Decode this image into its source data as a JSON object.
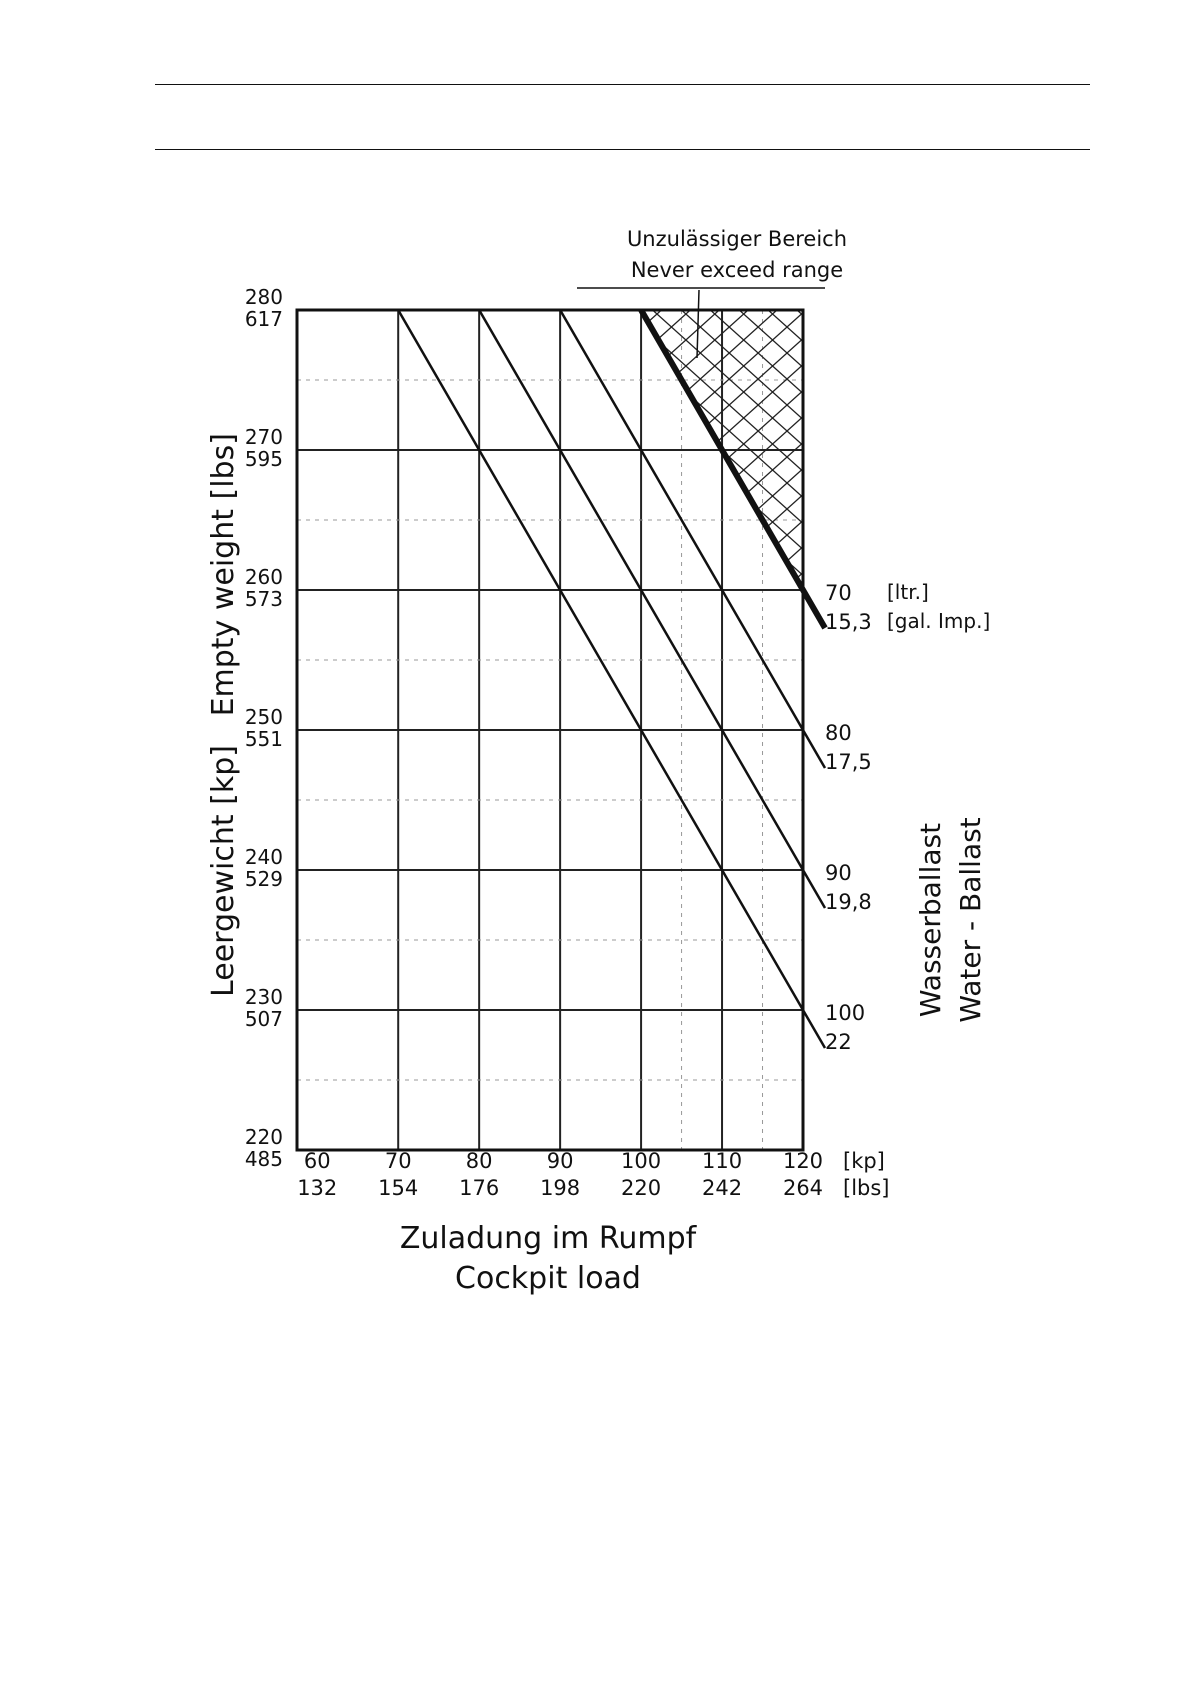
{
  "chart_data": {
    "type": "line",
    "title": "",
    "xlabel": "Zuladung im Rumpf",
    "xlabel2": "Cockpit load",
    "ylabel": "Leergewicht [kp]   Empty weight [lbs]",
    "xlim": [
      57.5,
      120
    ],
    "ylim": [
      220,
      280
    ],
    "x_ticks": [
      {
        "kp": "60",
        "lbs": "132"
      },
      {
        "kp": "70",
        "lbs": "154"
      },
      {
        "kp": "80",
        "lbs": "176"
      },
      {
        "kp": "90",
        "lbs": "198"
      },
      {
        "kp": "100",
        "lbs": "220"
      },
      {
        "kp": "110",
        "lbs": "242"
      },
      {
        "kp": "120",
        "lbs": "264"
      }
    ],
    "x_units": {
      "kp": "[kp]",
      "lbs": "[lbs]"
    },
    "y_ticks": [
      {
        "kp": "220",
        "lbs": "485"
      },
      {
        "kp": "230",
        "lbs": "507"
      },
      {
        "kp": "240",
        "lbs": "529"
      },
      {
        "kp": "250",
        "lbs": "551"
      },
      {
        "kp": "260",
        "lbs": "573"
      },
      {
        "kp": "270",
        "lbs": "595"
      },
      {
        "kp": "280",
        "lbs": "617"
      }
    ],
    "grid": true,
    "series": [
      {
        "name": "70",
        "name2": "15,3",
        "unit": "[ltr.]",
        "unit2": "[gal. Imp.]",
        "x": [
          100,
          120
        ],
        "y": [
          280,
          260
        ]
      },
      {
        "name": "80",
        "name2": "17,5",
        "x": [
          90,
          120
        ],
        "y": [
          280,
          250
        ]
      },
      {
        "name": "90",
        "name2": "19,8",
        "x": [
          80,
          120
        ],
        "y": [
          280,
          240
        ]
      },
      {
        "name": "100",
        "name2": "22",
        "x": [
          70,
          120
        ],
        "y": [
          280,
          230
        ]
      }
    ],
    "series_title": "Wasserballast",
    "series_title2": "Water - Ballast",
    "annotation": {
      "line1": "Unzulässiger Bereich",
      "line2": "Never exceed range",
      "region": [
        [
          100,
          280
        ],
        [
          120,
          280
        ],
        [
          120,
          260
        ]
      ]
    }
  }
}
